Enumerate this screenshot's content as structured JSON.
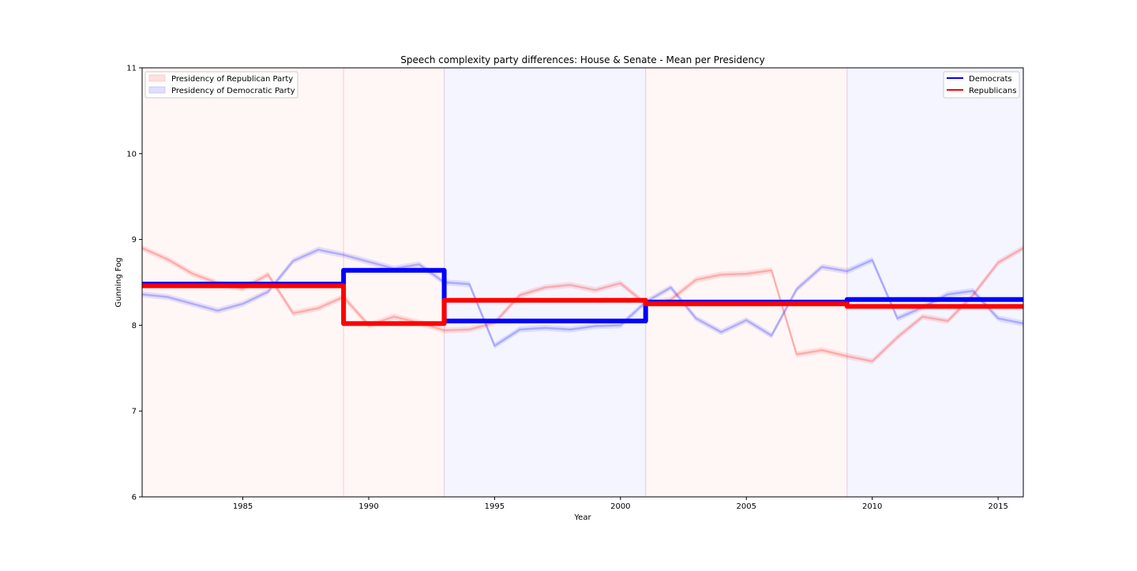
{
  "chart_data": {
    "type": "line",
    "title": "Speech complexity party differences: House & Senate - Mean per Presidency",
    "xlabel": "Year",
    "ylabel": "Gunning Fog",
    "xlim": [
      1981,
      2016
    ],
    "ylim": [
      6,
      11
    ],
    "x_ticks": [
      1985,
      1990,
      1995,
      2000,
      2005,
      2010,
      2015
    ],
    "y_ticks": [
      6,
      7,
      8,
      9,
      10,
      11
    ],
    "grid": false,
    "shading_legend": {
      "placement": "top-left",
      "entries": [
        {
          "label": "Presidency of Republican Party",
          "color": "#ff9999"
        },
        {
          "label": "Presidency of Democratic Party",
          "color": "#9999ff"
        }
      ]
    },
    "line_legend": {
      "placement": "top-right",
      "entries": [
        {
          "label": "Democrats",
          "color": "#0000ff"
        },
        {
          "label": "Republicans",
          "color": "#ff0000"
        }
      ]
    },
    "presidencies": [
      {
        "start": 1981,
        "end": 1989,
        "party": "Republican"
      },
      {
        "start": 1989,
        "end": 1993,
        "party": "Republican"
      },
      {
        "start": 1993,
        "end": 2001,
        "party": "Democratic"
      },
      {
        "start": 2001,
        "end": 2009,
        "party": "Republican"
      },
      {
        "start": 2009,
        "end": 2016,
        "party": "Democratic"
      }
    ],
    "series": [
      {
        "name": "Democrats",
        "color": "#0000ff",
        "yearly": {
          "x": [
            1981,
            1982,
            1983,
            1984,
            1985,
            1986,
            1987,
            1988,
            1989,
            1990,
            1991,
            1992,
            1993,
            1994,
            1995,
            1996,
            1997,
            1998,
            1999,
            2000,
            2001,
            2002,
            2003,
            2004,
            2005,
            2006,
            2007,
            2008,
            2009,
            2010,
            2011,
            2012,
            2013,
            2014,
            2015,
            2016
          ],
          "y": [
            8.36,
            8.33,
            8.25,
            8.17,
            8.25,
            8.39,
            8.75,
            8.88,
            8.82,
            8.74,
            8.66,
            8.71,
            8.5,
            8.48,
            7.76,
            7.95,
            7.97,
            7.95,
            7.99,
            8.0,
            8.27,
            8.44,
            8.08,
            7.92,
            8.06,
            7.88,
            8.42,
            8.68,
            8.63,
            8.76,
            8.08,
            8.21,
            8.36,
            8.4,
            8.08,
            8.02
          ],
          "band": 0.035
        },
        "presidency_means": [
          {
            "start": 1981,
            "end": 1989,
            "value": 8.48
          },
          {
            "start": 1989,
            "end": 1993,
            "value": 8.64
          },
          {
            "start": 1993,
            "end": 2001,
            "value": 8.05
          },
          {
            "start": 2001,
            "end": 2009,
            "value": 8.27
          },
          {
            "start": 2009,
            "end": 2016,
            "value": 8.3
          }
        ]
      },
      {
        "name": "Republicans",
        "color": "#ff0000",
        "yearly": {
          "x": [
            1981,
            1982,
            1983,
            1984,
            1985,
            1986,
            1987,
            1988,
            1989,
            1990,
            1991,
            1992,
            1993,
            1994,
            1995,
            1996,
            1997,
            1998,
            1999,
            2000,
            2001,
            2002,
            2003,
            2004,
            2005,
            2006,
            2007,
            2008,
            2009,
            2010,
            2011,
            2012,
            2013,
            2014,
            2015,
            2016
          ],
          "y": [
            8.9,
            8.77,
            8.6,
            8.49,
            8.43,
            8.59,
            8.14,
            8.2,
            8.33,
            8.0,
            8.1,
            8.03,
            7.94,
            7.95,
            8.03,
            8.35,
            8.44,
            8.47,
            8.41,
            8.49,
            8.25,
            8.3,
            8.53,
            8.59,
            8.6,
            8.64,
            7.66,
            7.71,
            7.64,
            7.58,
            7.86,
            8.1,
            8.05,
            8.35,
            8.73,
            8.9
          ],
          "band": 0.035
        },
        "presidency_means": [
          {
            "start": 1981,
            "end": 1989,
            "value": 8.46
          },
          {
            "start": 1989,
            "end": 1993,
            "value": 8.02
          },
          {
            "start": 1993,
            "end": 2001,
            "value": 8.29
          },
          {
            "start": 2001,
            "end": 2009,
            "value": 8.25
          },
          {
            "start": 2009,
            "end": 2016,
            "value": 8.22
          }
        ]
      }
    ]
  }
}
